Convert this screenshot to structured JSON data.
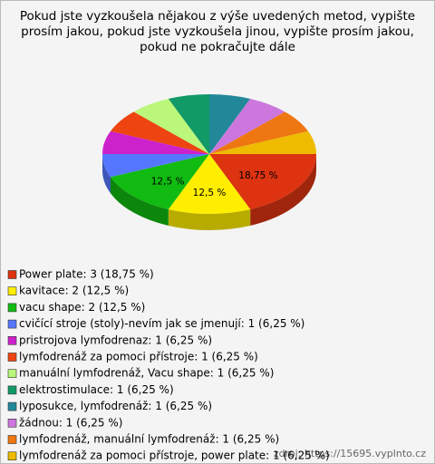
{
  "chart_data": {
    "type": "pie3d",
    "title": [
      "Pokud jste vyzkoušela nějakou z výše uvedených metod, vypište",
      "prosím jakou, pokud jste vyzkoušela jinou, vypište prosím jakou,",
      "pokud ne pokračujte dále"
    ],
    "categories": [
      "Power plate: 3 (18,75 %)",
      "kavitace: 2 (12,5 %)",
      "vacu shape: 2 (12,5 %)",
      "cvičící stroje (stoly)-nevím jak se jmenují: 1 (6,25 %)",
      "pristrojova lymfodrenaz: 1 (6,25 %)",
      "lymfodrenáž za pomoci přístroje: 1 (6,25 %)",
      "manuální lymfodrenáž, Vacu shape: 1 (6,25 %)",
      "elektrostimulace: 1 (6,25 %)",
      "lyposukce, lymfodrenáž: 1 (6,25 %)",
      "žádnou: 1 (6,25 %)",
      "lymfodrenáž, manuální lymfodrenáž: 1 (6,25 %)",
      "lymfodrenáž za pomoci přístroje, power plate: 1 (6,25 %)"
    ],
    "values": [
      18.75,
      12.5,
      12.5,
      6.25,
      6.25,
      6.25,
      6.25,
      6.25,
      6.25,
      6.25,
      6.25,
      6.25
    ],
    "value_labels": [
      "18,75 %",
      "12,5 %",
      "12,5 %",
      null,
      null,
      null,
      null,
      null,
      null,
      null,
      null,
      null
    ],
    "colors": [
      "#dd3311",
      "#ffee00",
      "#11bb11",
      "#5577ff",
      "#cc22cc",
      "#ee4411",
      "#bbf77a",
      "#119966",
      "#228899",
      "#cc77dd",
      "#ee7711",
      "#eebb00"
    ],
    "source": "zdroj: https://15695.vyplnto.cz"
  }
}
